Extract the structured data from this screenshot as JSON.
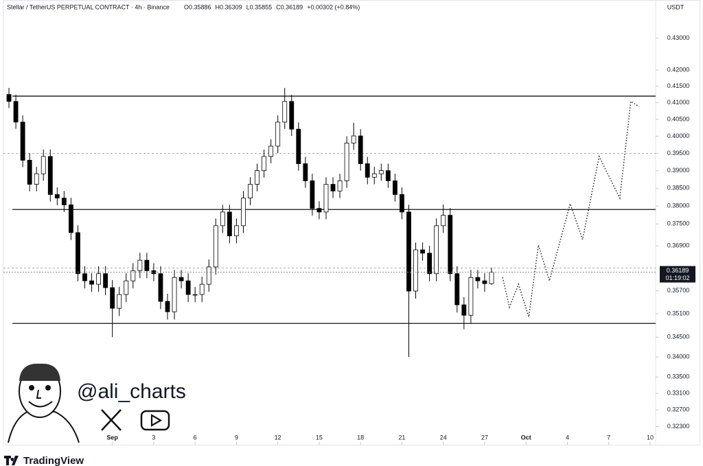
{
  "chart_data": {
    "type": "candlestick",
    "title": "Stellar / TetherUS PERPETUAL CONTRACT · 4h · Binance",
    "ohlc_readout": [
      "O0.35886",
      "H0.36309",
      "L0.35855",
      "C0.36189",
      "+0.00302 (+0.84%)"
    ],
    "currency": "USDT",
    "countdown": "01:19:02",
    "author": "@ali_charts",
    "brand": "TradingView",
    "log_scale": true,
    "color_up": "#ffffff",
    "color_down": "#000000",
    "xlim": [
      -7.9,
      39.4
    ],
    "ylim": [
      0.32,
      0.44
    ],
    "xticks": [
      {
        "value": 0,
        "label": "Sep"
      },
      3,
      6,
      9,
      12,
      15,
      18,
      21,
      24,
      27,
      {
        "value": 30,
        "label": "Oct"
      },
      {
        "value": 33,
        "label": "4"
      },
      {
        "value": 36,
        "label": "7"
      },
      {
        "value": 39,
        "label": "10"
      }
    ],
    "yticks": [
      {
        "value": 0.43,
        "label": "0.43000"
      },
      {
        "value": 0.42,
        "label": "0.42000"
      },
      {
        "value": 0.415,
        "label": "0.41500"
      },
      {
        "value": 0.41,
        "label": "0.41000"
      },
      {
        "value": 0.405,
        "label": "0.40500"
      },
      {
        "value": 0.4,
        "label": "0.40000"
      },
      {
        "value": 0.395,
        "label": "0.39500"
      },
      {
        "value": 0.39,
        "label": "0.39000"
      },
      {
        "value": 0.385,
        "label": "0.38500"
      },
      {
        "value": 0.38,
        "label": "0.38000"
      },
      {
        "value": 0.375,
        "label": "0.37500"
      },
      {
        "value": 0.369,
        "label": "0.36900"
      },
      {
        "value": 0.357,
        "label": "0.35700"
      },
      {
        "value": 0.351,
        "label": "0.35100"
      },
      {
        "value": 0.345,
        "label": "0.34500"
      },
      {
        "value": 0.34,
        "label": "0.34000"
      },
      {
        "value": 0.335,
        "label": "0.33500"
      },
      {
        "value": 0.331,
        "label": "0.33100"
      },
      {
        "value": 0.327,
        "label": "0.32700"
      },
      {
        "value": 0.323,
        "label": "0.32300"
      }
    ],
    "x": [
      -7.5,
      -7,
      -6.5,
      -6,
      -5.5,
      -5,
      -4.5,
      -4,
      -3.5,
      -3,
      -2.5,
      -2,
      -1.5,
      -1,
      -0.5,
      0,
      0.5,
      1,
      1.5,
      2,
      2.5,
      3,
      3.5,
      4,
      4.5,
      5,
      5.5,
      6,
      6.5,
      7,
      7.5,
      8,
      8.5,
      9,
      9.5,
      10,
      10.5,
      11,
      11.5,
      12,
      12.5,
      13,
      13.5,
      14,
      14.5,
      15,
      15.5,
      16,
      16.5,
      17,
      17.5,
      18,
      18.5,
      19,
      19.5,
      20,
      20.5,
      21,
      21.5,
      22,
      22.5,
      23,
      23.5,
      24,
      24.5,
      25,
      25.5,
      26,
      26.5,
      27,
      27.5
    ],
    "open": [
      0.4125,
      0.4104,
      0.4042,
      0.393,
      0.3861,
      0.3891,
      0.3941,
      0.3832,
      0.3822,
      0.3803,
      0.3726,
      0.3615,
      0.3596,
      0.3587,
      0.3615,
      0.3578,
      0.3524,
      0.356,
      0.3596,
      0.3623,
      0.3651,
      0.3623,
      0.3615,
      0.3542,
      0.3515,
      0.3605,
      0.3596,
      0.356,
      0.356,
      0.3587,
      0.3633,
      0.3745,
      0.3783,
      0.3717,
      0.3745,
      0.3822,
      0.3861,
      0.39,
      0.3941,
      0.3971,
      0.4042,
      0.4104,
      0.4021,
      0.392,
      0.3871,
      0.3793,
      0.3783,
      0.3861,
      0.3842,
      0.3871,
      0.398,
      0.4001,
      0.392,
      0.3881,
      0.3891,
      0.39,
      0.3871,
      0.3832,
      0.3783,
      0.3569,
      0.3679,
      0.367,
      0.3615,
      0.3745,
      0.3774,
      0.3615,
      0.3533,
      0.3506,
      0.3605,
      0.3596,
      0.35886
    ],
    "high": [
      0.4145,
      0.4124,
      0.4062,
      0.395,
      0.3911,
      0.3961,
      0.3961,
      0.3852,
      0.3842,
      0.3823,
      0.3746,
      0.3635,
      0.3616,
      0.3635,
      0.3635,
      0.3598,
      0.358,
      0.3616,
      0.3643,
      0.3671,
      0.3671,
      0.3643,
      0.3635,
      0.3562,
      0.3625,
      0.3625,
      0.3616,
      0.358,
      0.3607,
      0.3653,
      0.3765,
      0.3803,
      0.3803,
      0.3765,
      0.3842,
      0.3881,
      0.392,
      0.3961,
      0.3991,
      0.4062,
      0.4145,
      0.4124,
      0.4041,
      0.394,
      0.3891,
      0.3813,
      0.3881,
      0.3881,
      0.3891,
      0.4,
      0.404,
      0.4021,
      0.394,
      0.3911,
      0.392,
      0.392,
      0.3891,
      0.3852,
      0.3803,
      0.3699,
      0.3699,
      0.369,
      0.3765,
      0.3804,
      0.3794,
      0.3635,
      0.3553,
      0.3625,
      0.3625,
      0.3616,
      0.36309
    ],
    "low": [
      0.4084,
      0.4022,
      0.391,
      0.3841,
      0.3841,
      0.3871,
      0.3812,
      0.3802,
      0.3783,
      0.3706,
      0.3595,
      0.3576,
      0.3567,
      0.3567,
      0.3558,
      0.345,
      0.3504,
      0.354,
      0.3576,
      0.3603,
      0.3603,
      0.3595,
      0.3522,
      0.3495,
      0.3495,
      0.3576,
      0.354,
      0.354,
      0.354,
      0.3567,
      0.3613,
      0.3725,
      0.3697,
      0.3697,
      0.3725,
      0.3802,
      0.3841,
      0.388,
      0.3921,
      0.3951,
      0.4022,
      0.4001,
      0.39,
      0.3851,
      0.3773,
      0.3763,
      0.3763,
      0.3822,
      0.3822,
      0.3851,
      0.396,
      0.39,
      0.3861,
      0.3861,
      0.3871,
      0.3851,
      0.3812,
      0.3763,
      0.34,
      0.3549,
      0.365,
      0.3595,
      0.3595,
      0.3725,
      0.3595,
      0.3513,
      0.347,
      0.3486,
      0.3576,
      0.3567,
      0.35855
    ],
    "close": [
      0.4104,
      0.4042,
      0.393,
      0.3861,
      0.3891,
      0.3941,
      0.3832,
      0.3822,
      0.3803,
      0.3726,
      0.3615,
      0.3596,
      0.3587,
      0.3615,
      0.3578,
      0.3524,
      0.356,
      0.3596,
      0.3623,
      0.3651,
      0.3623,
      0.3615,
      0.3542,
      0.3515,
      0.3605,
      0.3596,
      0.356,
      0.356,
      0.3587,
      0.3633,
      0.3745,
      0.3783,
      0.3717,
      0.3745,
      0.3822,
      0.3861,
      0.39,
      0.3941,
      0.3971,
      0.4042,
      0.4104,
      0.4021,
      0.392,
      0.3871,
      0.3793,
      0.3783,
      0.3861,
      0.3842,
      0.3871,
      0.398,
      0.4001,
      0.392,
      0.3881,
      0.3891,
      0.39,
      0.3871,
      0.3832,
      0.3783,
      0.3569,
      0.3679,
      0.367,
      0.3615,
      0.3745,
      0.3774,
      0.3615,
      0.3533,
      0.3506,
      0.3605,
      0.3596,
      0.35887,
      0.36189
    ],
    "levels": [
      0.412,
      0.379,
      0.3485
    ],
    "dashed_levels": [
      0.395,
      0.363
    ],
    "projection": {
      "x": [
        28.3,
        28.8,
        29.45,
        30.2,
        30.9,
        31.7,
        33.2,
        34.1,
        35.3,
        36.8,
        37.6,
        38.2
      ],
      "values": [
        0.3605,
        0.3527,
        0.3587,
        0.3502,
        0.3692,
        0.3596,
        0.3806,
        0.3707,
        0.3941,
        0.3822,
        0.4104,
        0.4089
      ]
    }
  }
}
